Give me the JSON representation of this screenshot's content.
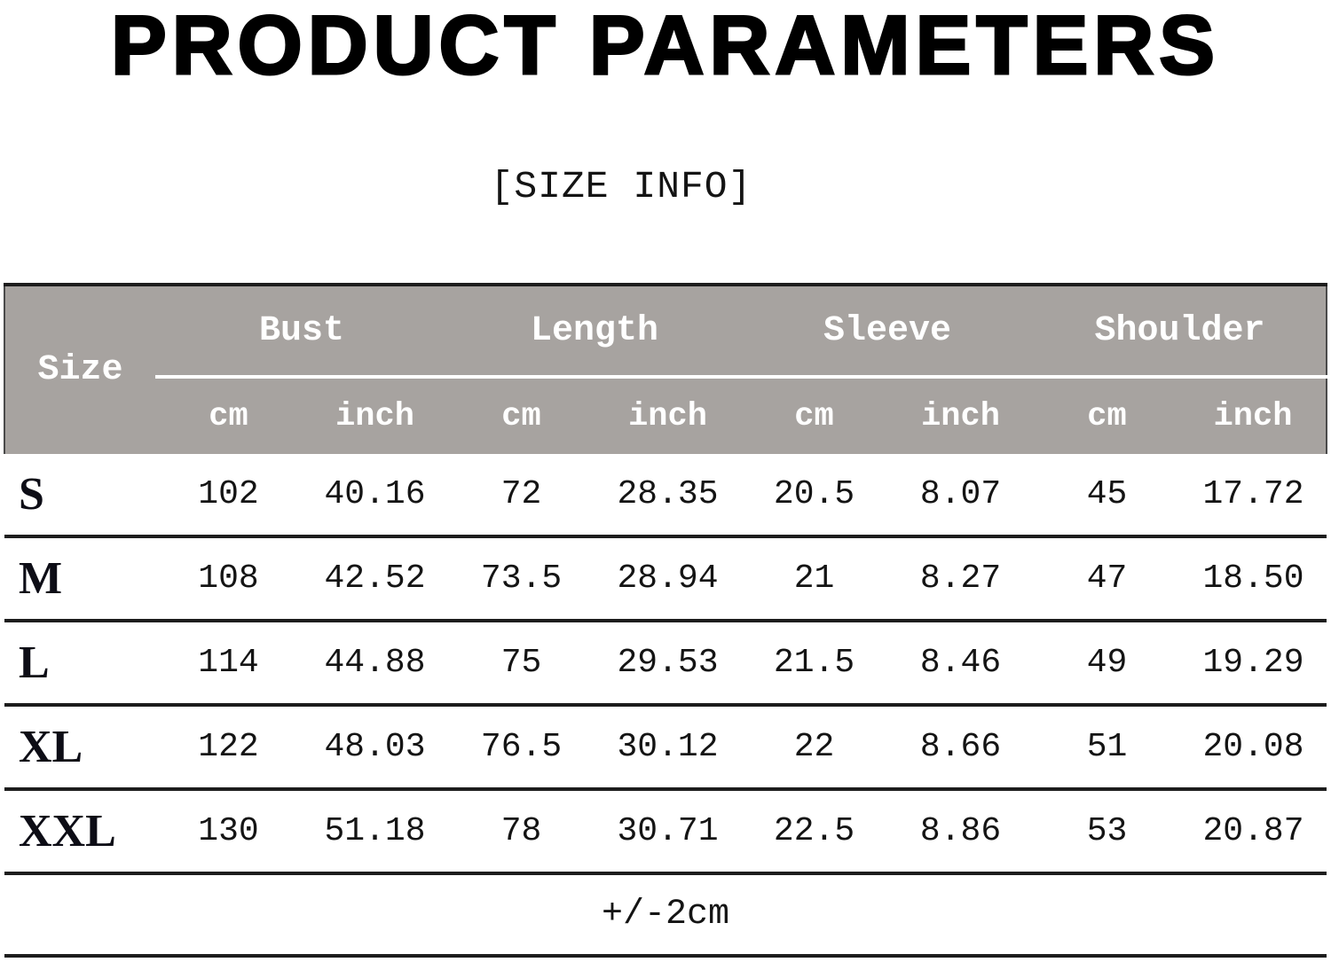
{
  "header": {
    "title": "PRODUCT PARAMETERS",
    "subtitle": "[SIZE INFO]"
  },
  "colors": {
    "table_header_bg": "#a7a3a0",
    "table_header_text": "#ffffff",
    "rule_line": "#1d1d1d",
    "body_text": "#141414",
    "title_text": "#000000"
  },
  "chart_data": {
    "type": "table",
    "title": "PRODUCT PARAMETERS",
    "subtitle": "[SIZE INFO]",
    "corner_label": "Size",
    "groups": [
      {
        "label": "Bust"
      },
      {
        "label": "Length"
      },
      {
        "label": "Sleeve"
      },
      {
        "label": "Shoulder"
      }
    ],
    "unit_row": [
      "cm",
      "inch",
      "cm",
      "inch",
      "cm",
      "inch",
      "cm",
      "inch"
    ],
    "rows": [
      {
        "size": "S",
        "values": [
          "102",
          "40.16",
          "72",
          "28.35",
          "20.5",
          "8.07",
          "45",
          "17.72"
        ]
      },
      {
        "size": "M",
        "values": [
          "108",
          "42.52",
          "73.5",
          "28.94",
          "21",
          "8.27",
          "47",
          "18.50"
        ]
      },
      {
        "size": "L",
        "values": [
          "114",
          "44.88",
          "75",
          "29.53",
          "21.5",
          "8.46",
          "49",
          "19.29"
        ]
      },
      {
        "size": "XL",
        "values": [
          "122",
          "48.03",
          "76.5",
          "30.12",
          "22",
          "8.66",
          "51",
          "20.08"
        ]
      },
      {
        "size": "XXL",
        "values": [
          "130",
          "51.18",
          "78",
          "30.71",
          "22.5",
          "8.86",
          "53",
          "20.87"
        ]
      }
    ],
    "footer_note": "+/-2cm"
  }
}
